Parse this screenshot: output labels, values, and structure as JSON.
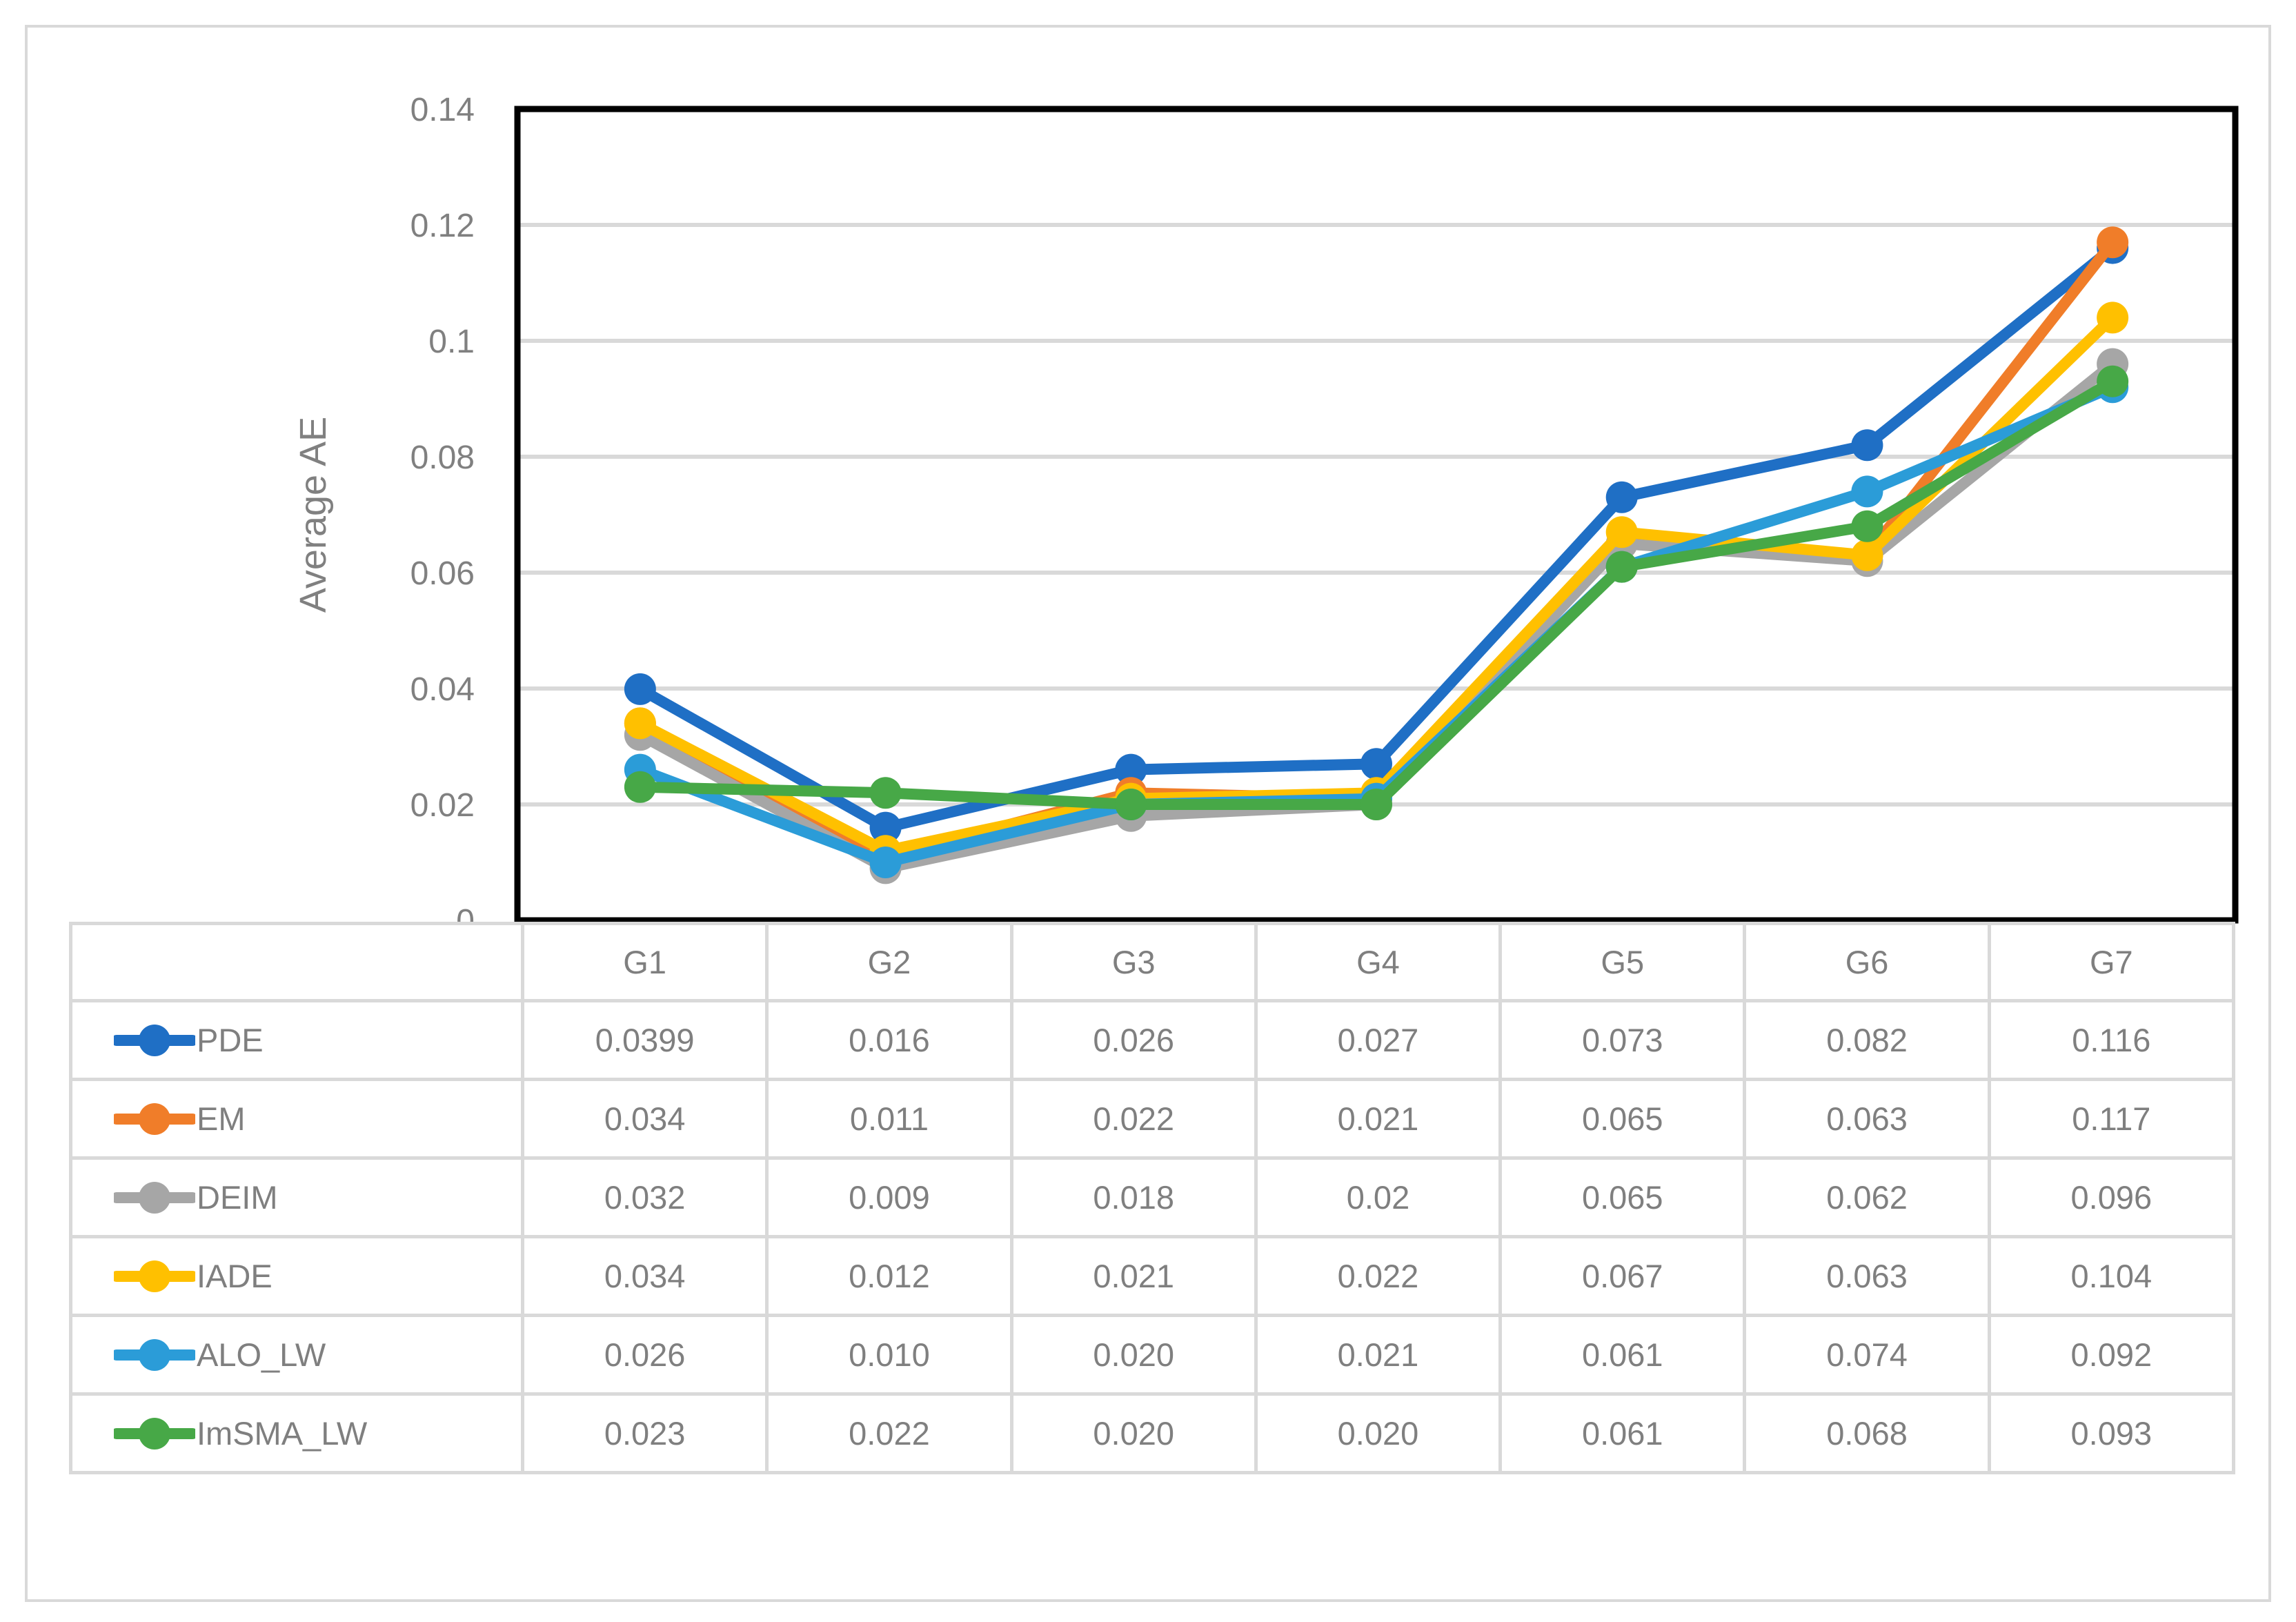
{
  "chart_data": {
    "type": "line",
    "title": "",
    "xlabel": "",
    "ylabel": "Average AE",
    "categories": [
      "G1",
      "G2",
      "G3",
      "G4",
      "G5",
      "G6",
      "G7"
    ],
    "ylim": [
      0,
      0.14
    ],
    "ytick_step": 0.02,
    "ytick_labels": [
      "0",
      "0.02",
      "0.04",
      "0.06",
      "0.08",
      "0.1",
      "0.12",
      "0.14"
    ],
    "grid": true,
    "legend_position": "table-left",
    "series": [
      {
        "name": "PDE",
        "color": "#1f6fc5",
        "values": [
          0.0399,
          0.016,
          0.026,
          0.027,
          0.073,
          0.082,
          0.116
        ],
        "display": [
          "0.0399",
          "0.016",
          "0.026",
          "0.027",
          "0.073",
          "0.082",
          "0.116"
        ]
      },
      {
        "name": "EM",
        "color": "#f07d29",
        "values": [
          0.034,
          0.011,
          0.022,
          0.021,
          0.065,
          0.063,
          0.117
        ],
        "display": [
          "0.034",
          "0.011",
          "0.022",
          "0.021",
          "0.065",
          "0.063",
          "0.117"
        ]
      },
      {
        "name": "DEIM",
        "color": "#a6a6a6",
        "values": [
          0.032,
          0.009,
          0.018,
          0.02,
          0.065,
          0.062,
          0.096
        ],
        "display": [
          "0.032",
          "0.009",
          "0.018",
          "0.02",
          "0.065",
          "0.062",
          "0.096"
        ]
      },
      {
        "name": "IADE",
        "color": "#ffc000",
        "values": [
          0.034,
          0.012,
          0.021,
          0.022,
          0.067,
          0.063,
          0.104
        ],
        "display": [
          "0.034",
          "0.012",
          "0.021",
          "0.022",
          "0.067",
          "0.063",
          "0.104"
        ]
      },
      {
        "name": "ALO_LW",
        "color": "#2b9cd8",
        "values": [
          0.026,
          0.01,
          0.02,
          0.021,
          0.061,
          0.074,
          0.092
        ],
        "display": [
          "0.026",
          "0.010",
          "0.020",
          "0.021",
          "0.061",
          "0.074",
          "0.092"
        ]
      },
      {
        "name": "ImSMA_LW",
        "color": "#47a847",
        "values": [
          0.023,
          0.022,
          0.02,
          0.02,
          0.061,
          0.068,
          0.093
        ],
        "display": [
          "0.023",
          "0.022",
          "0.020",
          "0.020",
          "0.061",
          "0.068",
          "0.093"
        ]
      }
    ]
  },
  "colors": {
    "axis_text": "#808080",
    "gridline": "#d9d9d9",
    "plot_border": "#000000",
    "table_border": "#d9d9d9",
    "table_text": "#7f7f7f",
    "background": "#ffffff"
  }
}
